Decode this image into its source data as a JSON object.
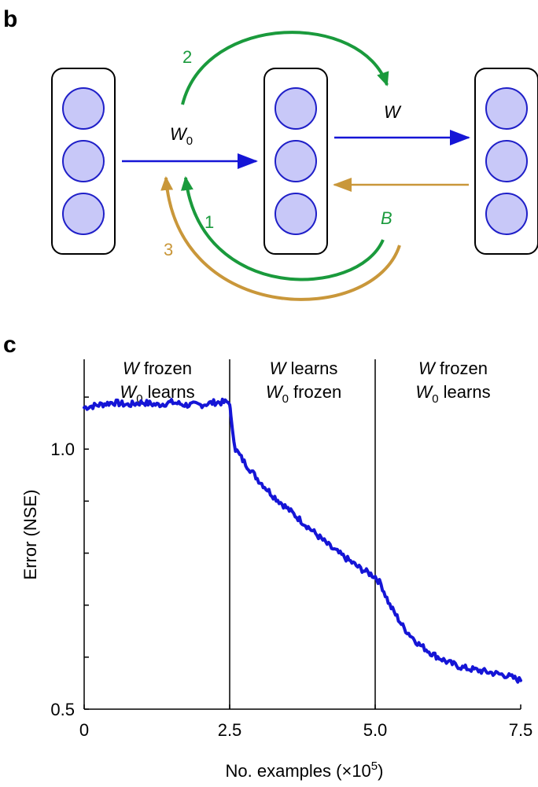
{
  "panel_b": {
    "letter": "b",
    "w0_label": "W",
    "w0_sub": "0",
    "w_label": "W",
    "b_label": "B",
    "step_1": "1",
    "step_2": "2",
    "step_3": "3",
    "colors": {
      "forward": "#1515d6",
      "green": "#1a9a3c",
      "gold": "#c9973a",
      "neuron_fill": "#c8c8f8",
      "neuron_stroke": "#1f1fc8"
    }
  },
  "panel_c": {
    "letter": "c",
    "phases": [
      {
        "line1_w": "W",
        "line1_rest": " frozen",
        "line2_w": "W",
        "line2_sub": "0",
        "line2_rest": " learns"
      },
      {
        "line1_w": "W",
        "line1_rest": " learns",
        "line2_w": "W",
        "line2_sub": "0",
        "line2_rest": " frozen"
      },
      {
        "line1_w": "W",
        "line1_rest": " frozen",
        "line2_w": "W",
        "line2_sub": "0",
        "line2_rest": " learns"
      }
    ],
    "xlabel_main": "No. examples (×10",
    "xlabel_exp": "5",
    "xlabel_close": ")",
    "ylabel": "Error (NSE)"
  },
  "chart_data": {
    "type": "line",
    "xlabel": "No. examples (×10^5)",
    "ylabel": "Error (NSE)",
    "xlim": [
      0,
      7.5
    ],
    "ylim": [
      0.5,
      1.15
    ],
    "xticks": [
      "0",
      "2.5",
      "5.0",
      "7.5"
    ],
    "yticks": [
      "0.5",
      "1.0"
    ],
    "phase_boundaries": [
      2.5,
      5.0
    ],
    "series": [
      {
        "color": "#1515d6",
        "x": [
          0,
          0.25,
          0.5,
          0.75,
          1.0,
          1.25,
          1.5,
          1.75,
          2.0,
          2.25,
          2.5,
          2.52,
          2.6,
          2.75,
          3.0,
          3.25,
          3.5,
          3.75,
          4.0,
          4.25,
          4.5,
          4.75,
          5.0,
          5.1,
          5.25,
          5.5,
          5.75,
          6.0,
          6.25,
          6.5,
          6.75,
          7.0,
          7.25,
          7.5
        ],
        "y": [
          1.08,
          1.085,
          1.09,
          1.085,
          1.09,
          1.085,
          1.09,
          1.085,
          1.085,
          1.09,
          1.09,
          1.06,
          1.0,
          0.975,
          0.94,
          0.91,
          0.885,
          0.86,
          0.835,
          0.81,
          0.79,
          0.77,
          0.755,
          0.74,
          0.7,
          0.655,
          0.625,
          0.605,
          0.59,
          0.58,
          0.575,
          0.57,
          0.565,
          0.555
        ]
      }
    ]
  }
}
